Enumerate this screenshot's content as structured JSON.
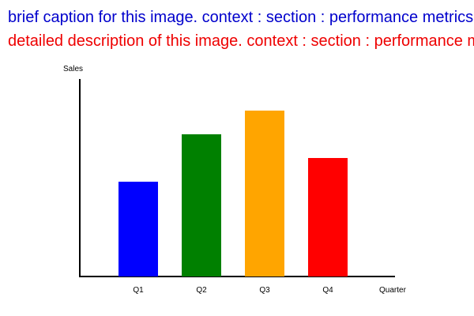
{
  "captions": {
    "brief": "brief caption for this image. context : section : performance metrics",
    "detailed": "detailed description of this image. context : section : performance metrics"
  },
  "chart_data": {
    "type": "bar",
    "categories": [
      "Q1",
      "Q2",
      "Q3",
      "Q4"
    ],
    "values": [
      120,
      180,
      210,
      150
    ],
    "colors": [
      "#0000ff",
      "#008000",
      "#ffa500",
      "#ff0000"
    ],
    "xlabel": "Quarter",
    "ylabel": "Sales",
    "ylim": [
      0,
      250
    ],
    "grid": false,
    "legend": "none"
  }
}
